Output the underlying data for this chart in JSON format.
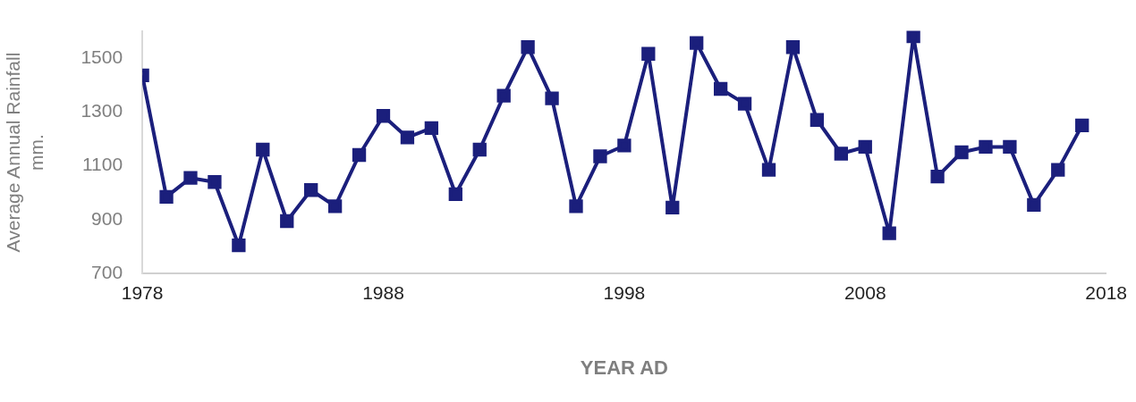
{
  "chart_data": {
    "type": "line",
    "xlabel": "YEAR AD",
    "ylabel": "Average Annual Rainfall\nmm.",
    "x": [
      1978,
      1979,
      1980,
      1981,
      1982,
      1983,
      1984,
      1985,
      1986,
      1987,
      1988,
      1989,
      1990,
      1991,
      1992,
      1993,
      1994,
      1995,
      1996,
      1997,
      1998,
      1999,
      2000,
      2001,
      2002,
      2003,
      2004,
      2005,
      2006,
      2007,
      2008,
      2009,
      2010,
      2011,
      2012,
      2013,
      2014,
      2015,
      2016,
      2017
    ],
    "series": [
      {
        "color": "#1b1f7c",
        "values": [
          1435,
          985,
          1055,
          1040,
          805,
          1160,
          895,
          1010,
          950,
          1140,
          1285,
          1205,
          1240,
          995,
          1160,
          1360,
          1540,
          1350,
          950,
          1135,
          1175,
          1515,
          945,
          1555,
          1385,
          1330,
          1085,
          1540,
          1270,
          1145,
          1170,
          850,
          1580,
          1060,
          1150,
          1170,
          1170,
          955,
          1085,
          1250
        ]
      }
    ],
    "xlim": [
      1978,
      2018
    ],
    "xticks": [
      1978,
      1988,
      1998,
      2008,
      2018
    ],
    "ylim": [
      700,
      1600
    ],
    "yticks": [
      700,
      900,
      1100,
      1300,
      1500
    ],
    "grid": false,
    "legend": false,
    "marker": "square",
    "line_style": "solid"
  }
}
